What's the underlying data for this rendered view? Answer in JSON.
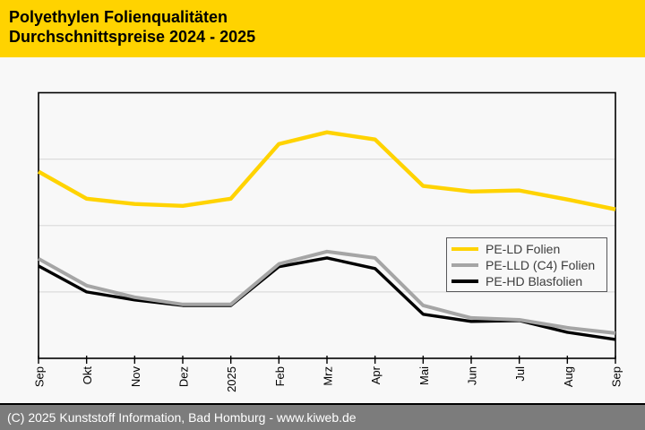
{
  "header": {
    "line1": "Polyethylen Folienqualitäten",
    "line2": "Durchschnittspreise 2024 - 2025"
  },
  "footer": {
    "text": "(C) 2025 Kunststoff Information, Bad Homburg - www.kiweb.de"
  },
  "colors": {
    "header_bg": "#FFD300",
    "page_bg": "#f8f8f8",
    "grid": "#dcdcdc",
    "axis": "#000000",
    "legend_border": "#58585a",
    "footer_bg": "#7c7c7c",
    "footer_text": "#ffffff"
  },
  "chart_data": {
    "type": "line",
    "title": "Polyethylen Folienqualitäten",
    "subtitle": "Durchschnittspreise 2024 - 2025",
    "categories": [
      "Sep",
      "Okt",
      "Nov",
      "Dez",
      "2025",
      "Feb",
      "Mrz",
      "Apr",
      "Mai",
      "Jun",
      "Jul",
      "Aug",
      "Sep"
    ],
    "x_tick_rotation": -90,
    "grid": "horizontal",
    "y_gridlines_percent": [
      25,
      50,
      75
    ],
    "y_axis": {
      "labels_visible": false,
      "note": "no numeric scale printed on chart; series values are percent of plot height (0 = bottom axis, 100 = top border), read from pixel positions"
    },
    "legend_position": "inside-right",
    "series": [
      {
        "name": "PE-LD Folien",
        "color": "#FFD300",
        "values": [
          70.3,
          60.1,
          58.1,
          57.4,
          60.1,
          80.7,
          85.1,
          82.4,
          64.9,
          62.8,
          63.2,
          59.8,
          56.1
        ]
      },
      {
        "name": "PE-LLD (C4) Folien",
        "color": "#A5A5A5",
        "values": [
          37.5,
          27.4,
          23.0,
          20.3,
          20.3,
          35.5,
          40.2,
          37.8,
          19.9,
          15.2,
          14.5,
          11.5,
          9.5
        ]
      },
      {
        "name": "PE-HD Blasfolien",
        "color": "#000000",
        "values": [
          34.8,
          25.0,
          22.0,
          19.9,
          19.9,
          34.5,
          37.8,
          33.8,
          16.6,
          13.9,
          14.2,
          9.8,
          7.1
        ]
      }
    ]
  }
}
